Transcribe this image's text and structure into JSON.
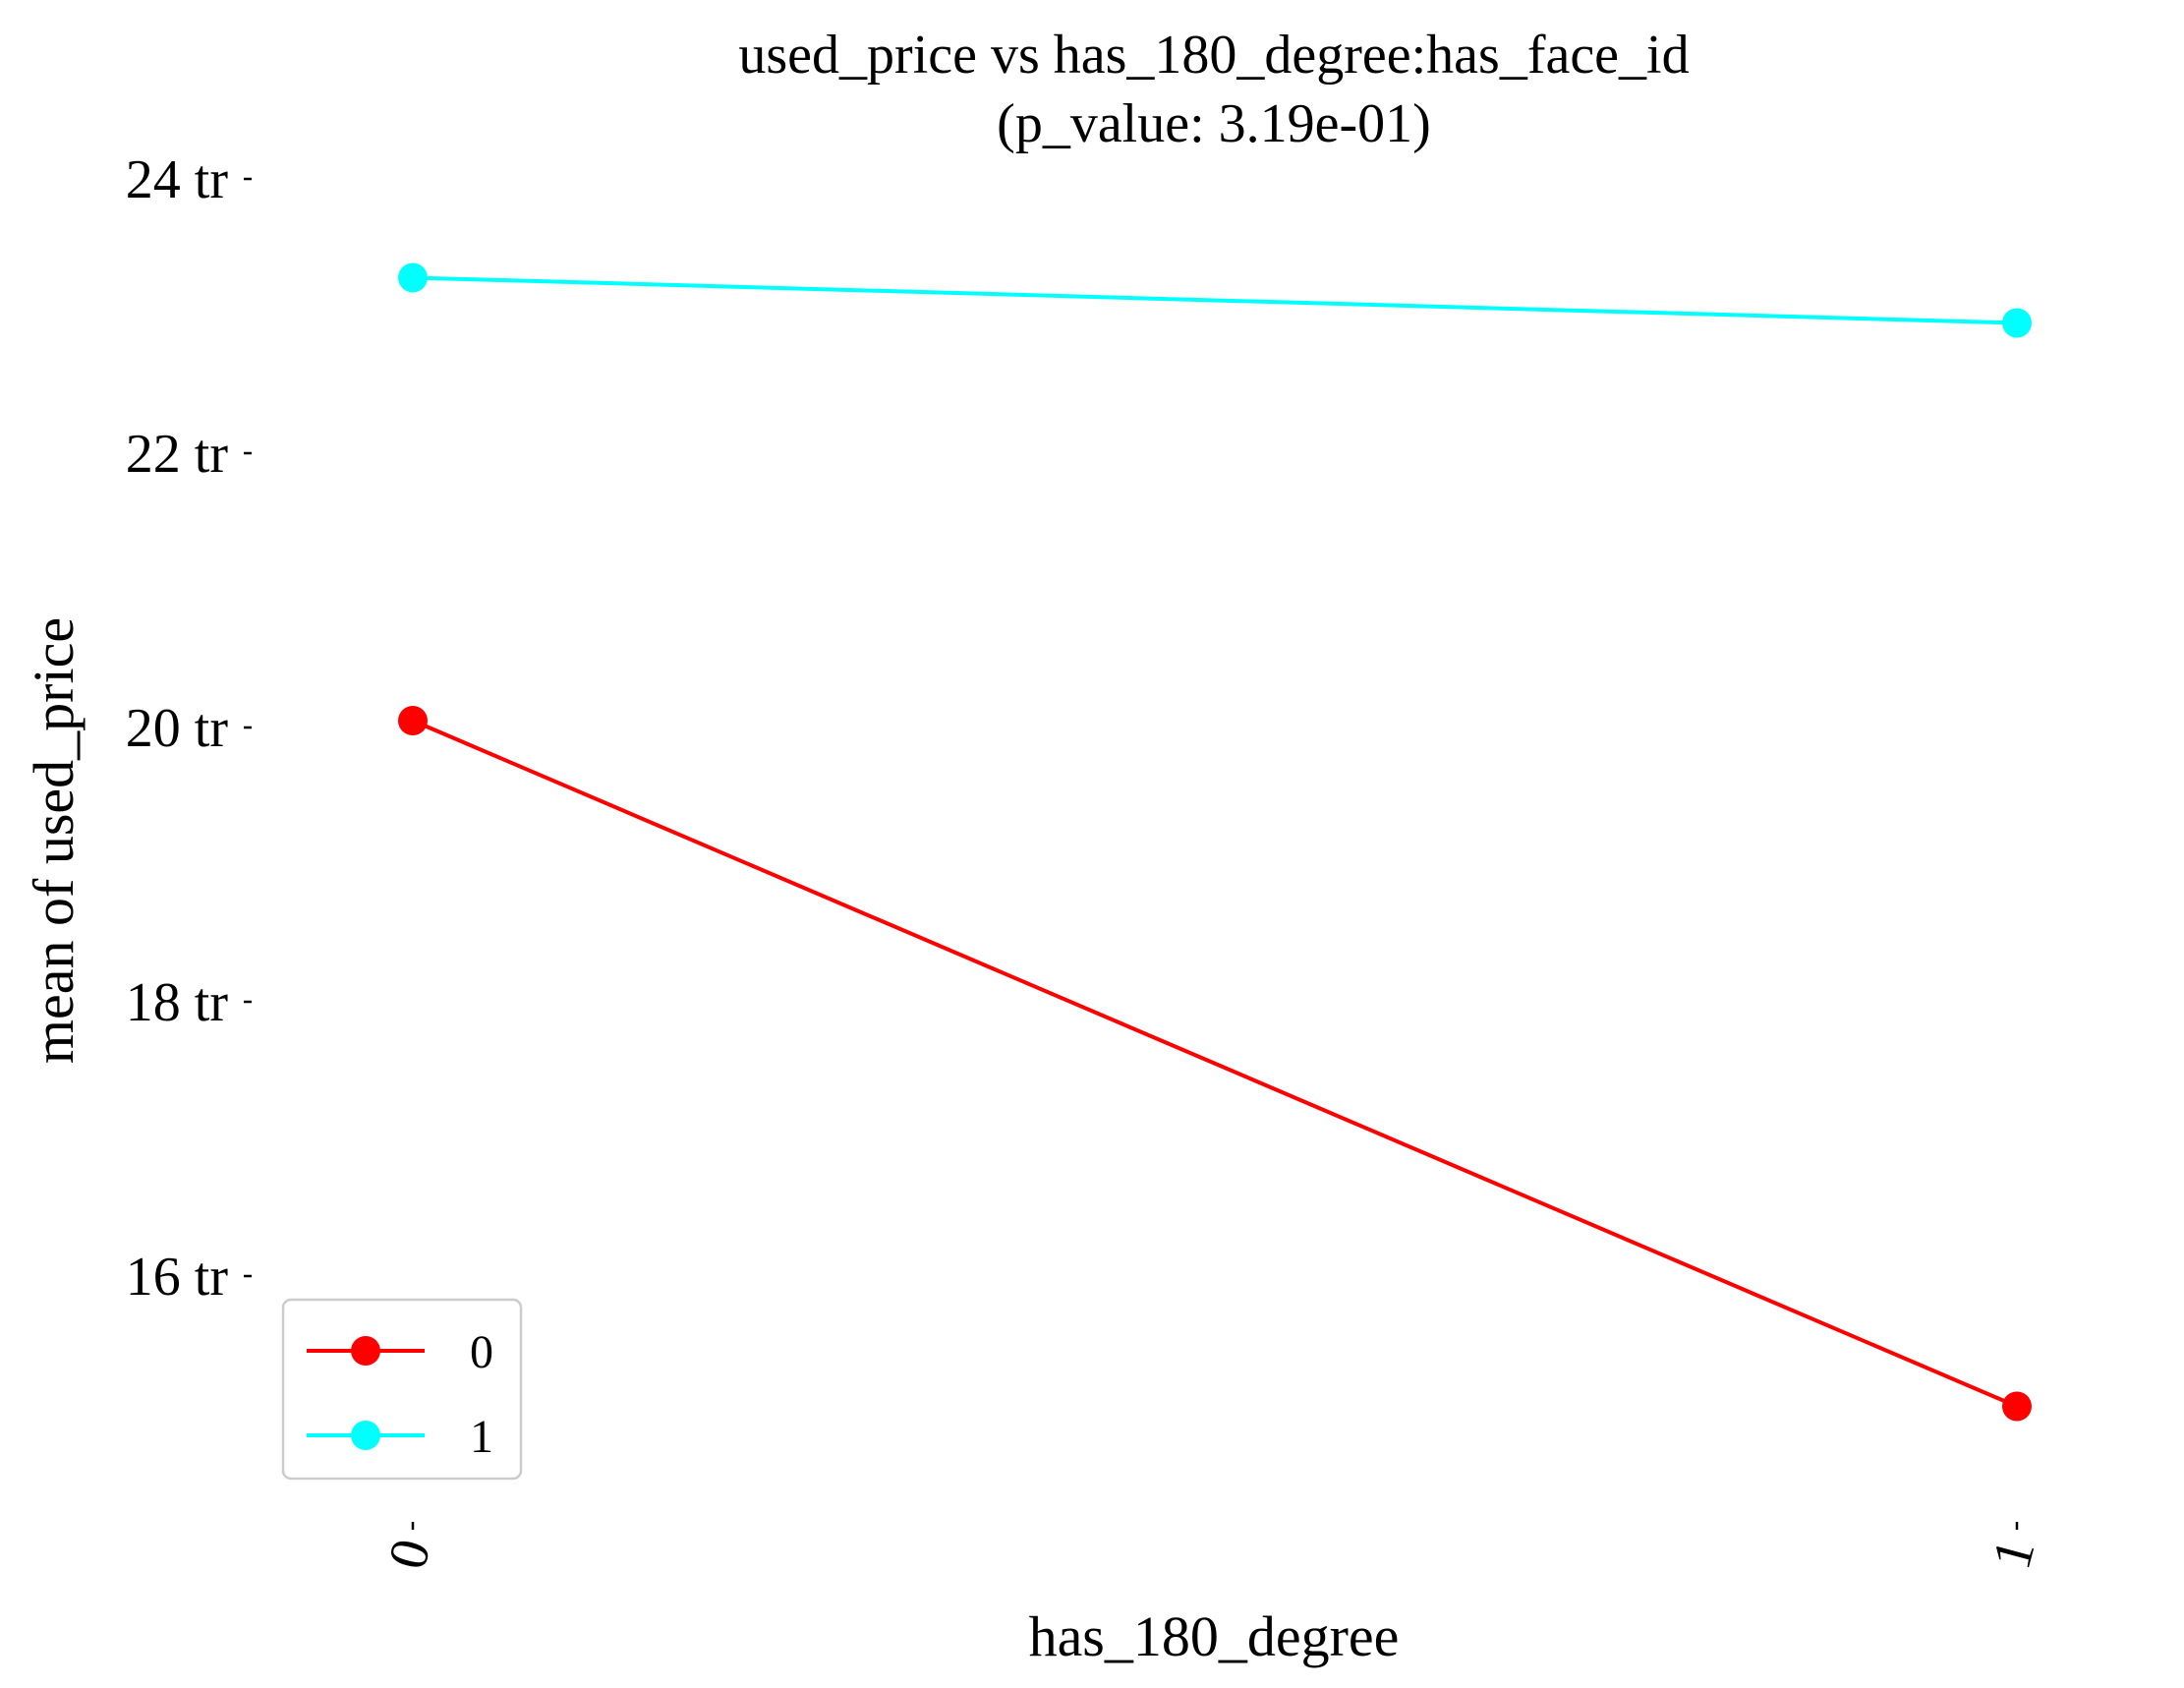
{
  "chart_data": {
    "type": "line",
    "title": "used_price vs has_180_degree:has_face_id",
    "subtitle": "(p_value: 3.19e-01)",
    "xlabel": "has_180_degree",
    "ylabel": "mean of used_price",
    "categories": [
      "0",
      "1"
    ],
    "y_ticks": [
      16,
      18,
      20,
      22,
      24
    ],
    "y_tick_labels": [
      "16 tr",
      "18 tr",
      "20 tr",
      "22 tr",
      "24 tr"
    ],
    "ylim": [
      14.0,
      24.2
    ],
    "grid": false,
    "legend_position": "lower-left",
    "series": [
      {
        "name": "0",
        "color": "#ff0000",
        "values": [
          20.05,
          15.05
        ]
      },
      {
        "name": "1",
        "color": "#00ffff",
        "values": [
          23.28,
          22.95
        ]
      }
    ]
  }
}
